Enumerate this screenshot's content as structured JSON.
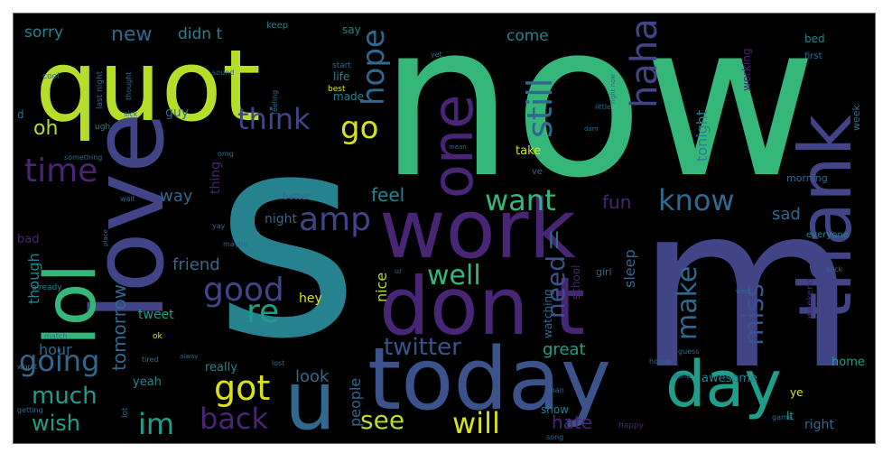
{
  "colors": {
    "background": "#000000",
    "palette": {
      "purple": "#482575",
      "indigo": "#414487",
      "blue": "#3b528b",
      "slate": "#31688e",
      "teal": "#26828e",
      "cyan": "#1f9e89",
      "green": "#35b779",
      "lime": "#6ece58",
      "yellow": "#b5de2b",
      "gold": "#d8e219"
    }
  },
  "words": [
    {
      "text": "now",
      "color": "green",
      "size": 235,
      "rotate": 0
    },
    {
      "text": "s",
      "color": "teal",
      "size": 310,
      "rotate": 0
    },
    {
      "text": "m",
      "color": "indigo",
      "size": 250,
      "rotate": 0
    },
    {
      "text": "quot",
      "color": "yellow",
      "size": 110,
      "rotate": 0
    },
    {
      "text": "love",
      "color": "indigo",
      "size": 110,
      "rotate": -90
    },
    {
      "text": "work",
      "color": "purple",
      "size": 90,
      "rotate": 0
    },
    {
      "text": "don t",
      "color": "purple",
      "size": 88,
      "rotate": 0
    },
    {
      "text": "today",
      "color": "blue",
      "size": 95,
      "rotate": 0
    },
    {
      "text": "thank",
      "color": "indigo",
      "size": 80,
      "rotate": -90
    },
    {
      "text": "one",
      "color": "purple",
      "size": 62,
      "rotate": -90
    },
    {
      "text": "lol",
      "color": "green",
      "size": 78,
      "rotate": -90
    },
    {
      "text": "u",
      "color": "slate",
      "size": 90,
      "rotate": 0
    },
    {
      "text": "day",
      "color": "cyan",
      "size": 70,
      "rotate": 0
    },
    {
      "text": "haha",
      "color": "indigo",
      "size": 40,
      "rotate": -90
    },
    {
      "text": "still",
      "color": "slate",
      "size": 38,
      "rotate": -90
    },
    {
      "text": "hope",
      "color": "slate",
      "size": 34,
      "rotate": -90
    },
    {
      "text": "think",
      "color": "indigo",
      "size": 32,
      "rotate": 0
    },
    {
      "text": "go",
      "color": "gold",
      "size": 34,
      "rotate": 0
    },
    {
      "text": "time",
      "color": "purple",
      "size": 36,
      "rotate": 0
    },
    {
      "text": "want",
      "color": "green",
      "size": 32,
      "rotate": 0
    },
    {
      "text": "know",
      "color": "slate",
      "size": 32,
      "rotate": 0
    },
    {
      "text": "amp",
      "color": "indigo",
      "size": 36,
      "rotate": 0
    },
    {
      "text": "good",
      "color": "indigo",
      "size": 36,
      "rotate": 0
    },
    {
      "text": "re",
      "color": "cyan",
      "size": 36,
      "rotate": 0
    },
    {
      "text": "well",
      "color": "green",
      "size": 30,
      "rotate": 0
    },
    {
      "text": "need",
      "color": "blue",
      "size": 28,
      "rotate": -90
    },
    {
      "text": "make",
      "color": "slate",
      "size": 30,
      "rotate": -90
    },
    {
      "text": "miss",
      "color": "blue",
      "size": 30,
      "rotate": -90
    },
    {
      "text": "going",
      "color": "slate",
      "size": 32,
      "rotate": 0
    },
    {
      "text": "got",
      "color": "gold",
      "size": 38,
      "rotate": 0
    },
    {
      "text": "back",
      "color": "purple",
      "size": 32,
      "rotate": 0
    },
    {
      "text": "im",
      "color": "cyan",
      "size": 32,
      "rotate": 0
    },
    {
      "text": "will",
      "color": "gold",
      "size": 32,
      "rotate": 0
    },
    {
      "text": "see",
      "color": "yellow",
      "size": 28,
      "rotate": 0
    },
    {
      "text": "twitter",
      "color": "blue",
      "size": 26,
      "rotate": 0
    },
    {
      "text": "much",
      "color": "cyan",
      "size": 26,
      "rotate": 0
    },
    {
      "text": "wish",
      "color": "cyan",
      "size": 24,
      "rotate": 0
    },
    {
      "text": "oh",
      "color": "yellow",
      "size": 22,
      "rotate": 0
    },
    {
      "text": "new",
      "color": "slate",
      "size": 22,
      "rotate": 0
    },
    {
      "text": "sorry",
      "color": "teal",
      "size": 17,
      "rotate": 0
    },
    {
      "text": "didn t",
      "color": "teal",
      "size": 17,
      "rotate": 0
    },
    {
      "text": "come",
      "color": "teal",
      "size": 17,
      "rotate": 0
    },
    {
      "text": "tomorrow",
      "color": "slate",
      "size": 20,
      "rotate": -90
    },
    {
      "text": "feel",
      "color": "teal",
      "size": 20,
      "rotate": 0
    },
    {
      "text": "fun",
      "color": "purple",
      "size": 20,
      "rotate": 0
    },
    {
      "text": "way",
      "color": "slate",
      "size": 18,
      "rotate": 0
    },
    {
      "text": "sad",
      "color": "slate",
      "size": 18,
      "rotate": 0
    },
    {
      "text": "friend",
      "color": "slate",
      "size": 18,
      "rotate": 0
    },
    {
      "text": "great",
      "color": "cyan",
      "size": 18,
      "rotate": 0
    },
    {
      "text": "hate",
      "color": "purple",
      "size": 20,
      "rotate": 0
    },
    {
      "text": "ll",
      "color": "slate",
      "size": 24,
      "rotate": 0
    },
    {
      "text": "look",
      "color": "slate",
      "size": 18,
      "rotate": 0
    },
    {
      "text": "tonight",
      "color": "teal",
      "size": 16,
      "rotate": -90
    },
    {
      "text": "sleep",
      "color": "slate",
      "size": 16,
      "rotate": -90
    },
    {
      "text": "though",
      "color": "teal",
      "size": 16,
      "rotate": -90
    },
    {
      "text": "people",
      "color": "slate",
      "size": 16,
      "rotate": -90
    },
    {
      "text": "nice",
      "color": "yellow",
      "size": 16,
      "rotate": -90
    },
    {
      "text": "hour",
      "color": "slate",
      "size": 16,
      "rotate": 0
    },
    {
      "text": "night",
      "color": "slate",
      "size": 14,
      "rotate": 0
    },
    {
      "text": "thing",
      "color": "purple",
      "size": 14,
      "rotate": -90
    },
    {
      "text": "hey",
      "color": "gold",
      "size": 14,
      "rotate": 0
    },
    {
      "text": "tweet",
      "color": "cyan",
      "size": 14,
      "rotate": 0
    },
    {
      "text": "awesome",
      "color": "teal",
      "size": 13,
      "rotate": 0
    },
    {
      "text": "home",
      "color": "cyan",
      "size": 13,
      "rotate": 0
    },
    {
      "text": "right",
      "color": "slate",
      "size": 14,
      "rotate": 0
    },
    {
      "text": "show",
      "color": "teal",
      "size": 12,
      "rotate": 0
    },
    {
      "text": "really",
      "color": "teal",
      "size": 13,
      "rotate": 0
    },
    {
      "text": "yeah",
      "color": "teal",
      "size": 13,
      "rotate": 0
    },
    {
      "text": "guy",
      "color": "slate",
      "size": 14,
      "rotate": 0
    },
    {
      "text": "bed",
      "color": "teal",
      "size": 12,
      "rotate": 0
    },
    {
      "text": "first",
      "color": "slate",
      "size": 10,
      "rotate": 0
    },
    {
      "text": "keep",
      "color": "teal",
      "size": 10,
      "rotate": 0
    },
    {
      "text": "say",
      "color": "teal",
      "size": 12,
      "rotate": 0
    },
    {
      "text": "working",
      "color": "purple",
      "size": 12,
      "rotate": -90
    },
    {
      "text": "take",
      "color": "gold",
      "size": 13,
      "rotate": 0
    },
    {
      "text": "made",
      "color": "teal",
      "size": 12,
      "rotate": 0
    },
    {
      "text": "life",
      "color": "teal",
      "size": 12,
      "rotate": 0
    },
    {
      "text": "week",
      "color": "slate",
      "size": 11,
      "rotate": -90
    },
    {
      "text": "bad",
      "color": "purple",
      "size": 13,
      "rotate": 0
    },
    {
      "text": "watching",
      "color": "slate",
      "size": 12,
      "rotate": -90
    },
    {
      "text": "school",
      "color": "purple",
      "size": 12,
      "rotate": -90
    },
    {
      "text": "ye",
      "color": "gold",
      "size": 12,
      "rotate": 0
    },
    {
      "text": "lt",
      "color": "cyan",
      "size": 12,
      "rotate": 0
    },
    {
      "text": "girl",
      "color": "slate",
      "size": 11,
      "rotate": 0
    },
    {
      "text": "morning",
      "color": "slate",
      "size": 11,
      "rotate": 0
    },
    {
      "text": "weekend",
      "color": "purple",
      "size": 10,
      "rotate": -90
    },
    {
      "text": "better",
      "color": "slate",
      "size": 10,
      "rotate": 0
    },
    {
      "text": "everyone",
      "color": "teal",
      "size": 10,
      "rotate": 0
    },
    {
      "text": "d",
      "color": "slate",
      "size": 12,
      "rotate": 0
    },
    {
      "text": "last night",
      "color": "slate",
      "size": 9,
      "rotate": -90
    },
    {
      "text": "cool",
      "color": "slate",
      "size": 9,
      "rotate": 0
    },
    {
      "text": "thought",
      "color": "slate",
      "size": 8,
      "rotate": -90
    },
    {
      "text": "sound",
      "color": "slate",
      "size": 8,
      "rotate": 0
    },
    {
      "text": "feeling",
      "color": "slate",
      "size": 8,
      "rotate": -90
    },
    {
      "text": "best",
      "color": "gold",
      "size": 9,
      "rotate": 0
    },
    {
      "text": "start",
      "color": "slate",
      "size": 9,
      "rotate": 0
    },
    {
      "text": "ugh",
      "color": "teal",
      "size": 9,
      "rotate": 0
    },
    {
      "text": "sick",
      "color": "slate",
      "size": 8,
      "rotate": 0
    },
    {
      "text": "something",
      "color": "slate",
      "size": 8,
      "rotate": 0
    },
    {
      "text": "omg",
      "color": "slate",
      "size": 8,
      "rotate": 0
    },
    {
      "text": "ve",
      "color": "slate",
      "size": 10,
      "rotate": 0
    },
    {
      "text": "wait",
      "color": "slate",
      "size": 8,
      "rotate": 0
    },
    {
      "text": "yay",
      "color": "slate",
      "size": 8,
      "rotate": 0
    },
    {
      "text": "maybe",
      "color": "slate",
      "size": 8,
      "rotate": 0
    },
    {
      "text": "already",
      "color": "teal",
      "size": 9,
      "rotate": 0
    },
    {
      "text": "ok",
      "color": "gold",
      "size": 9,
      "rotate": 0
    },
    {
      "text": "match",
      "color": "slate",
      "size": 8,
      "rotate": 0
    },
    {
      "text": "won t",
      "color": "slate",
      "size": 8,
      "rotate": 0
    },
    {
      "text": "getting",
      "color": "slate",
      "size": 8,
      "rotate": 0
    },
    {
      "text": "tired",
      "color": "slate",
      "size": 8,
      "rotate": 0
    },
    {
      "text": "lost",
      "color": "slate",
      "size": 8,
      "rotate": 0
    },
    {
      "text": "alway",
      "color": "slate",
      "size": 7,
      "rotate": 0
    },
    {
      "text": "lot",
      "color": "slate",
      "size": 9,
      "rotate": -90
    },
    {
      "text": "song",
      "color": "slate",
      "size": 8,
      "rotate": 0
    },
    {
      "text": "happy",
      "color": "purple",
      "size": 9,
      "rotate": 0
    },
    {
      "text": "done",
      "color": "slate",
      "size": 8,
      "rotate": 0
    },
    {
      "text": "guess",
      "color": "slate",
      "size": 8,
      "rotate": 0
    },
    {
      "text": "house",
      "color": "slate",
      "size": 8,
      "rotate": 0
    },
    {
      "text": "man",
      "color": "slate",
      "size": 8,
      "rotate": 0
    },
    {
      "text": "game",
      "color": "slate",
      "size": 8,
      "rotate": 0
    },
    {
      "text": "suck",
      "color": "slate",
      "size": 8,
      "rotate": 0
    },
    {
      "text": "dam",
      "color": "slate",
      "size": 7,
      "rotate": 0
    },
    {
      "text": "little",
      "color": "slate",
      "size": 8,
      "rotate": 0
    },
    {
      "text": "right now",
      "color": "slate",
      "size": 7,
      "rotate": -90
    },
    {
      "text": "yet",
      "color": "slate",
      "size": 8,
      "rotate": 0
    },
    {
      "text": "mean",
      "color": "slate",
      "size": 7,
      "rotate": 0
    },
    {
      "text": "went",
      "color": "slate",
      "size": 7,
      "rotate": 0
    },
    {
      "text": "ur",
      "color": "slate",
      "size": 8,
      "rotate": 0
    },
    {
      "text": "place",
      "color": "slate",
      "size": 7,
      "rotate": -90
    },
    {
      "text": "soon",
      "color": "slate",
      "size": 7,
      "rotate": 0
    }
  ]
}
